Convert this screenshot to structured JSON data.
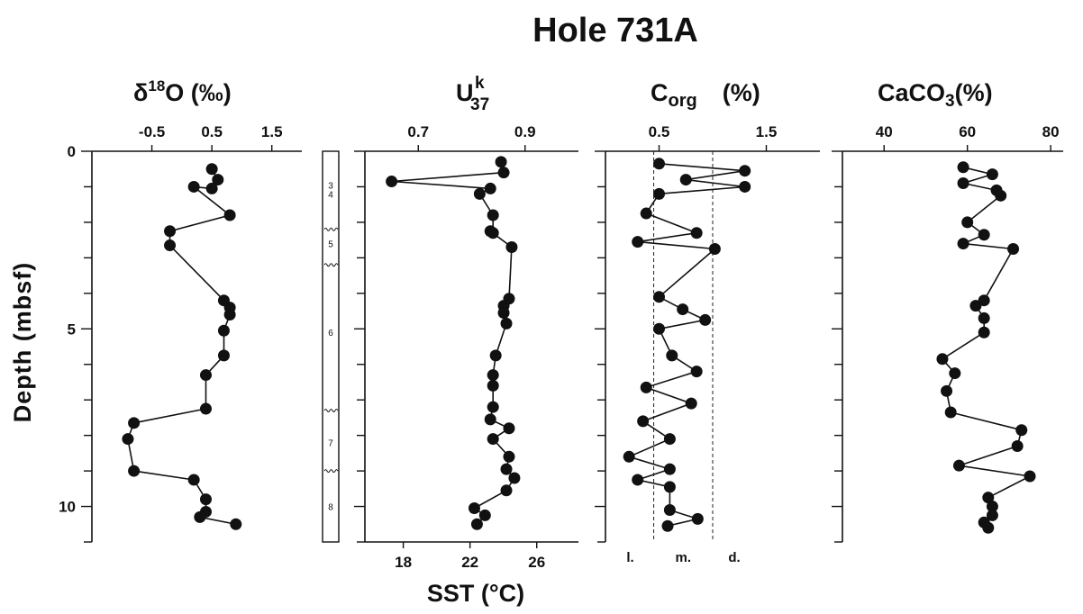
{
  "title": "Hole 731A",
  "chart_data": [
    {
      "type": "line",
      "panel": "d18O",
      "title_base": "δ",
      "title_sup": "18",
      "title_rest": "O (‰)",
      "xlim": [
        -1.5,
        2.0
      ],
      "xticks": [
        "-0.5",
        "0.5",
        "1.5"
      ],
      "xtick_values": [
        -0.5,
        0.5,
        1.5
      ],
      "ylabel": "Depth (mbsf)",
      "ylim": [
        11.0,
        0
      ],
      "yticks": [
        "0",
        "5",
        "10"
      ],
      "ytick_values": [
        0,
        5,
        10
      ],
      "x": [
        0.5,
        0.6,
        0.5,
        0.2,
        0.8,
        -0.2,
        -0.2,
        0.7,
        0.8,
        0.8,
        0.7,
        0.7,
        0.4,
        0.4,
        -0.8,
        -0.9,
        -0.8,
        0.2,
        0.4,
        0.4,
        0.3,
        0.9
      ],
      "y": [
        0.5,
        0.8,
        1.05,
        1.0,
        1.8,
        2.25,
        2.65,
        4.2,
        4.4,
        4.6,
        5.05,
        5.75,
        6.3,
        7.25,
        7.65,
        8.1,
        9.0,
        9.25,
        9.8,
        10.15,
        10.3,
        10.5
      ]
    },
    {
      "type": "line",
      "panel": "Uk37",
      "title_base": "U",
      "title_sup": "k",
      "title_sub": "37",
      "xlim": [
        0.6,
        1.0
      ],
      "xticks": [
        "0.7",
        "0.9"
      ],
      "xtick_values": [
        0.7,
        0.9
      ],
      "second_axis_label": "SST (°C)",
      "second_xticks": [
        "18",
        "22",
        "26"
      ],
      "second_xtick_values": [
        18,
        22,
        26
      ],
      "second_xlim": [
        15.7,
        28.5
      ],
      "x": [
        0.855,
        0.86,
        0.65,
        0.835,
        0.815,
        0.84,
        0.84,
        0.835,
        0.875,
        0.87,
        0.86,
        0.86,
        0.865,
        0.845,
        0.84,
        0.84,
        0.84,
        0.835,
        0.87,
        0.84,
        0.87,
        0.865,
        0.88,
        0.865,
        0.805,
        0.825,
        0.81
      ],
      "y": [
        0.3,
        0.6,
        0.85,
        1.05,
        1.2,
        1.8,
        2.3,
        2.25,
        2.7,
        4.15,
        4.35,
        4.55,
        4.85,
        5.75,
        6.3,
        6.6,
        7.2,
        7.55,
        7.8,
        8.1,
        8.6,
        8.95,
        9.2,
        9.55,
        10.05,
        10.25,
        10.5
      ]
    },
    {
      "type": "line",
      "panel": "Corg",
      "title_base": "C",
      "title_sub": "org",
      "title_rest": "(%)",
      "xlim": [
        0.0,
        2.0
      ],
      "xticks": [
        "0.5",
        "1.5"
      ],
      "xtick_values": [
        0.5,
        1.5
      ],
      "reference_lines": [
        0.45,
        1.0
      ],
      "region_labels": [
        "l.",
        "m.",
        "d."
      ],
      "x": [
        0.5,
        1.3,
        0.75,
        1.3,
        0.5,
        0.38,
        0.85,
        0.3,
        1.02,
        0.5,
        0.72,
        0.93,
        0.5,
        0.62,
        0.85,
        0.38,
        0.8,
        0.35,
        0.6,
        0.22,
        0.6,
        0.3,
        0.6,
        0.6,
        0.86,
        0.58
      ],
      "y": [
        0.35,
        0.55,
        0.8,
        1.0,
        1.2,
        1.75,
        2.3,
        2.55,
        2.75,
        4.1,
        4.45,
        4.75,
        5.0,
        5.75,
        6.2,
        6.65,
        7.1,
        7.6,
        8.1,
        8.6,
        8.95,
        9.25,
        9.45,
        10.1,
        10.35,
        10.55
      ]
    },
    {
      "type": "line",
      "panel": "CaCO3",
      "title_base": "CaCO",
      "title_sub": "3",
      "title_rest": "(%)",
      "xlim": [
        30,
        83
      ],
      "xticks": [
        "40",
        "60",
        "80"
      ],
      "xtick_values": [
        40,
        60,
        80
      ],
      "x": [
        59,
        66,
        59,
        67,
        68,
        60,
        64,
        59,
        71,
        64,
        62,
        64,
        64,
        54,
        57,
        55,
        56,
        73,
        72,
        58,
        75,
        65,
        66,
        66,
        64,
        65
      ],
      "y": [
        0.45,
        0.65,
        0.9,
        1.1,
        1.25,
        2.0,
        2.35,
        2.6,
        2.75,
        4.2,
        4.35,
        4.7,
        5.1,
        5.85,
        6.25,
        6.75,
        7.35,
        7.85,
        8.3,
        8.85,
        9.15,
        9.75,
        10.0,
        10.25,
        10.45,
        10.6
      ]
    }
  ],
  "core_column": {
    "labels": [
      "3",
      "4",
      "5",
      "6",
      "7",
      "8"
    ],
    "label_depths": [
      0.95,
      1.2,
      2.6,
      5.1,
      8.2,
      10.0
    ],
    "boundary_depths": [
      2.2,
      3.2,
      7.3,
      9.0
    ]
  }
}
